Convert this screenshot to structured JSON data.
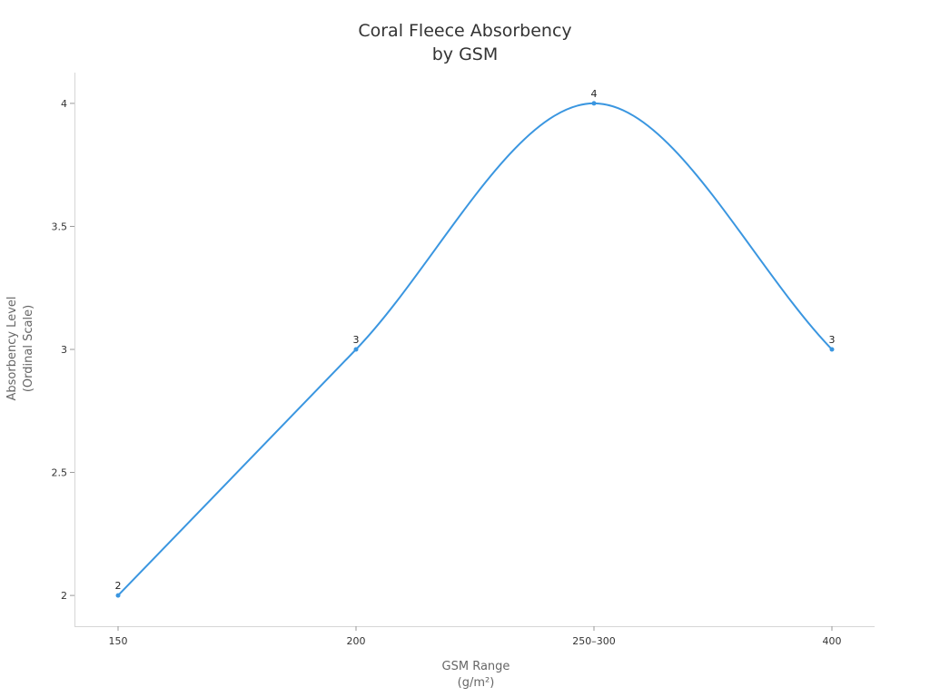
{
  "chart_data": {
    "type": "line",
    "title": [
      "Coral Fleece Absorbency",
      "by GSM"
    ],
    "xlabel": [
      "GSM Range",
      "(g/m²)"
    ],
    "ylabel": [
      "Absorbency Level",
      "(Ordinal Scale)"
    ],
    "categories": [
      "150",
      "200",
      "250–300",
      "400"
    ],
    "series": [
      {
        "values": [
          2,
          3,
          4,
          3
        ],
        "color": "#3a96e0"
      }
    ],
    "data_labels": [
      "2",
      "3",
      "4",
      "3"
    ],
    "y_ticks": [
      2,
      2.5,
      3,
      3.5,
      4
    ],
    "y_tick_labels": [
      "2",
      "2.5",
      "3",
      "3.5",
      "4"
    ],
    "ylim": [
      1.875,
      4.125
    ],
    "grid": false,
    "smooth": true
  }
}
